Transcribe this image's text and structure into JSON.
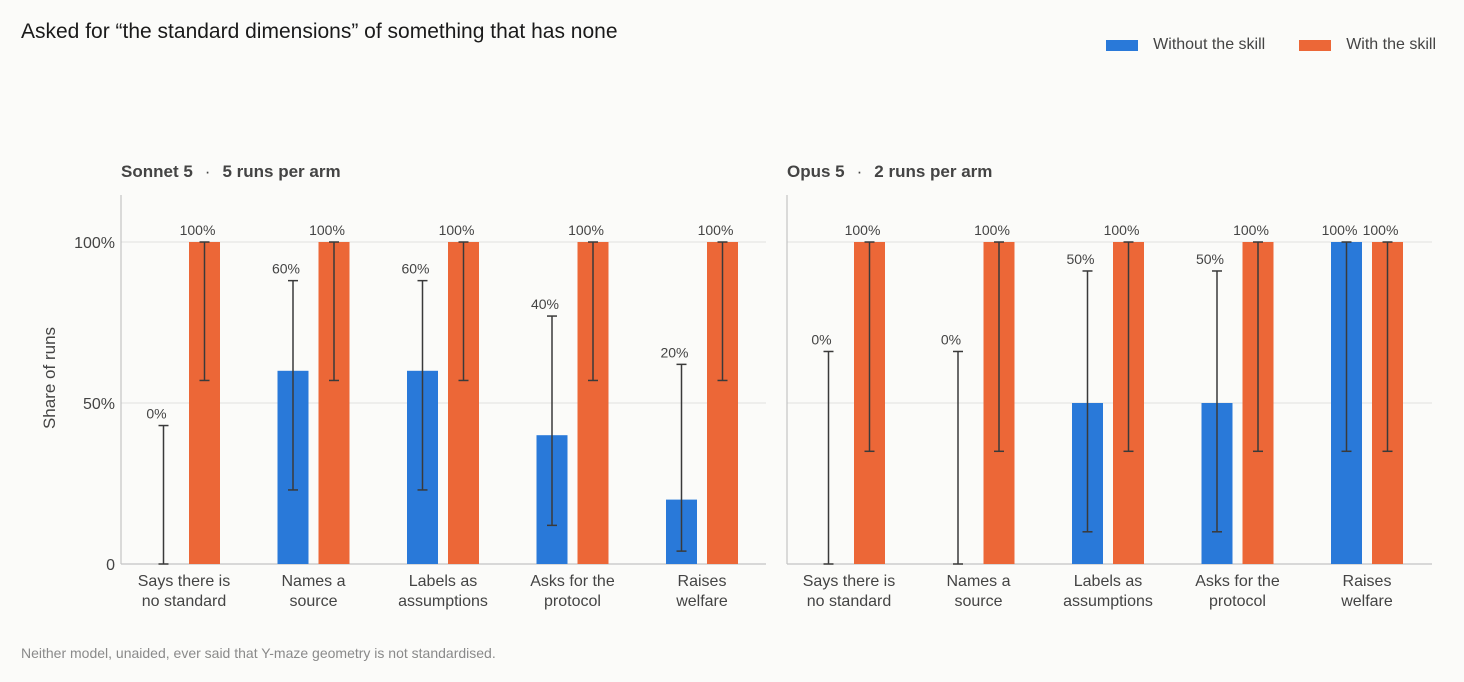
{
  "title": "Asked for “the standard dimensions” of something that has none",
  "legend": [
    {
      "label": "Without the skill",
      "color": "#2979d9"
    },
    {
      "label": "With the skill",
      "color": "#ec6737"
    }
  ],
  "ylabel": "Share of runs",
  "note": "Neither model, unaided, ever said that Y-maze geometry is not standardised.",
  "chart_data": [
    {
      "type": "bar",
      "panel_model": "Sonnet 5",
      "panel_runs": "5 runs per arm",
      "categories": [
        [
          "Says there is",
          "no standard"
        ],
        [
          "Names a",
          "source"
        ],
        [
          "Labels as",
          "assumptions"
        ],
        [
          "Asks for the",
          "protocol"
        ],
        [
          "Raises",
          "welfare"
        ]
      ],
      "ylim": [
        0,
        100
      ],
      "yticks": [
        0,
        50,
        100
      ],
      "ytick_labels": [
        "0",
        "50%",
        "100%"
      ],
      "grid": true,
      "series": [
        {
          "name": "Without the skill",
          "values": [
            0,
            60,
            60,
            40,
            20
          ],
          "ci_low": [
            0,
            23,
            23,
            12,
            4
          ],
          "ci_high": [
            43,
            88,
            88,
            77,
            62
          ],
          "labels": [
            "0%",
            "60%",
            "60%",
            "40%",
            "20%"
          ]
        },
        {
          "name": "With the skill",
          "values": [
            100,
            100,
            100,
            100,
            100
          ],
          "ci_low": [
            57,
            57,
            57,
            57,
            57
          ],
          "ci_high": [
            100,
            100,
            100,
            100,
            100
          ],
          "labels": [
            "100%",
            "100%",
            "100%",
            "100%",
            "100%"
          ]
        }
      ]
    },
    {
      "type": "bar",
      "panel_model": "Opus 5",
      "panel_runs": "2 runs per arm",
      "categories": [
        [
          "Says there is",
          "no standard"
        ],
        [
          "Names a",
          "source"
        ],
        [
          "Labels as",
          "assumptions"
        ],
        [
          "Asks for the",
          "protocol"
        ],
        [
          "Raises",
          "welfare"
        ]
      ],
      "ylim": [
        0,
        100
      ],
      "yticks": [
        0,
        50,
        100
      ],
      "grid": true,
      "series": [
        {
          "name": "Without the skill",
          "values": [
            0,
            0,
            50,
            50,
            100
          ],
          "ci_low": [
            0,
            0,
            10,
            10,
            35
          ],
          "ci_high": [
            66,
            66,
            91,
            91,
            100
          ],
          "labels": [
            "0%",
            "0%",
            "50%",
            "50%",
            "100%"
          ]
        },
        {
          "name": "With the skill",
          "values": [
            100,
            100,
            100,
            100,
            100
          ],
          "ci_low": [
            35,
            35,
            35,
            35,
            35
          ],
          "ci_high": [
            100,
            100,
            100,
            100,
            100
          ],
          "labels": [
            "100%",
            "100%",
            "100%",
            "100%",
            "100%"
          ]
        }
      ]
    }
  ]
}
